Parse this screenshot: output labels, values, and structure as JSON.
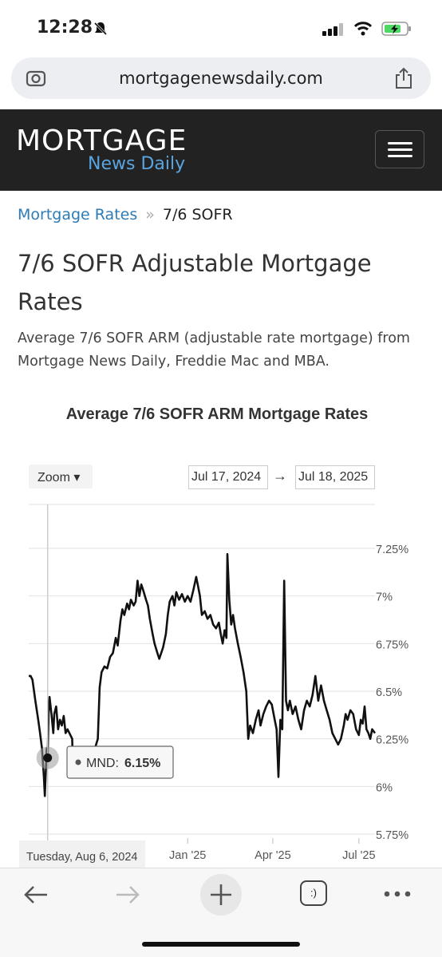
{
  "status_bar": {
    "time": "12:28"
  },
  "browser": {
    "url": "mortgagenewsdaily.com",
    "tab_count": ":)"
  },
  "site": {
    "logo_top": "MORTGAGE",
    "logo_bottom": "News Daily"
  },
  "breadcrumb": {
    "link": "Mortgage Rates",
    "separator": "»",
    "current": "7/6 SOFR"
  },
  "page": {
    "title": "7/6 SOFR Adjustable Mortgage Rates",
    "description": "Average 7/6 SOFR ARM (adjustable rate mortgage) from Mortgage News Daily, Freddie Mac and MBA."
  },
  "chart_controls": {
    "zoom_label": "Zoom ▾",
    "start_date": "Jul 17, 2024",
    "arrow": "→",
    "end_date": "Jul 18, 2025"
  },
  "tooltip": {
    "series": "MND:",
    "value": "6.15%",
    "date_label": "Tuesday, Aug 6, 2024"
  },
  "colors": {
    "header_bg": "#222222",
    "link": "#2d7bb7",
    "logo_accent": "#5aa5e0",
    "line": "#111111"
  },
  "chart_data": {
    "type": "line",
    "title": "Average 7/6 SOFR ARM Mortgage Rates",
    "xlabel": "",
    "ylabel": "",
    "y_ticks": [
      "5.75%",
      "6%",
      "6.25%",
      "6.5%",
      "6.75%",
      "7%",
      "7.25%"
    ],
    "x_ticks": [
      "Jan '25",
      "Apr '25",
      "Jul '25"
    ],
    "ylim": [
      5.75,
      7.25
    ],
    "xlim": [
      "2024-07-17",
      "2025-07-18"
    ],
    "grid": true,
    "series": [
      {
        "name": "MND",
        "points": [
          [
            "2024-07-17",
            6.58
          ],
          [
            "2024-07-19",
            6.58
          ],
          [
            "2024-07-21",
            6.56
          ],
          [
            "2024-07-24",
            6.45
          ],
          [
            "2024-07-27",
            6.35
          ],
          [
            "2024-07-29",
            6.28
          ],
          [
            "2024-07-31",
            6.2
          ],
          [
            "2024-08-02",
            6.05
          ],
          [
            "2024-08-03",
            5.95
          ],
          [
            "2024-08-05",
            6.2
          ],
          [
            "2024-08-06",
            6.15
          ],
          [
            "2024-08-07",
            6.38
          ],
          [
            "2024-08-08",
            6.47
          ],
          [
            "2024-08-10",
            6.38
          ],
          [
            "2024-08-12",
            6.28
          ],
          [
            "2024-08-13",
            6.38
          ],
          [
            "2024-08-15",
            6.42
          ],
          [
            "2024-08-17",
            6.3
          ],
          [
            "2024-08-19",
            6.35
          ],
          [
            "2024-08-21",
            6.32
          ],
          [
            "2024-08-23",
            6.37
          ],
          [
            "2024-08-25",
            6.28
          ],
          [
            "2024-08-27",
            6.3
          ],
          [
            "2024-08-30",
            6.27
          ],
          [
            "2024-09-01",
            6.25
          ],
          [
            "2024-09-02",
            6.05
          ],
          [
            "2024-09-04",
            6.18
          ],
          [
            "2024-09-06",
            6.1
          ],
          [
            "2024-09-09",
            6.07
          ],
          [
            "2024-09-11",
            6.12
          ],
          [
            "2024-09-14",
            6.15
          ],
          [
            "2024-09-16",
            6.12
          ],
          [
            "2024-09-19",
            6.14
          ],
          [
            "2024-09-22",
            6.18
          ],
          [
            "2024-09-25",
            6.2
          ],
          [
            "2024-09-28",
            6.25
          ],
          [
            "2024-09-30",
            6.52
          ],
          [
            "2024-10-02",
            6.6
          ],
          [
            "2024-10-05",
            6.63
          ],
          [
            "2024-10-08",
            6.62
          ],
          [
            "2024-10-11",
            6.68
          ],
          [
            "2024-10-14",
            6.7
          ],
          [
            "2024-10-17",
            6.78
          ],
          [
            "2024-10-19",
            6.74
          ],
          [
            "2024-10-22",
            6.87
          ],
          [
            "2024-10-24",
            6.93
          ],
          [
            "2024-10-26",
            6.9
          ],
          [
            "2024-10-29",
            6.96
          ],
          [
            "2024-10-31",
            6.93
          ],
          [
            "2024-11-02",
            6.98
          ],
          [
            "2024-11-05",
            6.95
          ],
          [
            "2024-11-07",
            6.97
          ],
          [
            "2024-11-09",
            7.08
          ],
          [
            "2024-11-11",
            7.0
          ],
          [
            "2024-11-13",
            7.06
          ],
          [
            "2024-11-15",
            7.03
          ],
          [
            "2024-11-18",
            6.98
          ],
          [
            "2024-11-20",
            6.95
          ],
          [
            "2024-11-22",
            6.88
          ],
          [
            "2024-11-25",
            6.8
          ],
          [
            "2024-11-27",
            6.75
          ],
          [
            "2024-11-30",
            6.7
          ],
          [
            "2024-12-02",
            6.67
          ],
          [
            "2024-12-04",
            6.7
          ],
          [
            "2024-12-06",
            6.73
          ],
          [
            "2024-12-09",
            6.8
          ],
          [
            "2024-12-11",
            6.9
          ],
          [
            "2024-12-13",
            6.97
          ],
          [
            "2024-12-16",
            7.0
          ],
          [
            "2024-12-18",
            6.95
          ],
          [
            "2024-12-20",
            7.02
          ],
          [
            "2024-12-23",
            6.98
          ],
          [
            "2024-12-26",
            7.01
          ],
          [
            "2024-12-29",
            6.97
          ],
          [
            "2025-01-01",
            7.0
          ],
          [
            "2025-01-04",
            6.97
          ],
          [
            "2025-01-07",
            7.03
          ],
          [
            "2025-01-10",
            7.1
          ],
          [
            "2025-01-12",
            7.05
          ],
          [
            "2025-01-14",
            7.0
          ],
          [
            "2025-01-16",
            6.9
          ],
          [
            "2025-01-19",
            6.92
          ],
          [
            "2025-01-22",
            6.88
          ],
          [
            "2025-01-25",
            6.9
          ],
          [
            "2025-01-28",
            6.85
          ],
          [
            "2025-01-31",
            6.83
          ],
          [
            "2025-02-03",
            6.86
          ],
          [
            "2025-02-05",
            6.8
          ],
          [
            "2025-02-07",
            6.75
          ],
          [
            "2025-02-09",
            6.82
          ],
          [
            "2025-02-11",
            6.78
          ],
          [
            "2025-02-12",
            7.22
          ],
          [
            "2025-02-14",
            6.98
          ],
          [
            "2025-02-16",
            6.85
          ],
          [
            "2025-02-18",
            6.9
          ],
          [
            "2025-02-20",
            6.83
          ],
          [
            "2025-02-23",
            6.75
          ],
          [
            "2025-02-26",
            6.68
          ],
          [
            "2025-03-01",
            6.6
          ],
          [
            "2025-03-04",
            6.5
          ],
          [
            "2025-03-06",
            6.25
          ],
          [
            "2025-03-08",
            6.32
          ],
          [
            "2025-03-11",
            6.28
          ],
          [
            "2025-03-14",
            6.35
          ],
          [
            "2025-03-17",
            6.4
          ],
          [
            "2025-03-19",
            6.32
          ],
          [
            "2025-03-22",
            6.38
          ],
          [
            "2025-03-25",
            6.42
          ],
          [
            "2025-03-28",
            6.45
          ],
          [
            "2025-03-31",
            6.43
          ],
          [
            "2025-04-03",
            6.35
          ],
          [
            "2025-04-05",
            6.3
          ],
          [
            "2025-04-07",
            6.05
          ],
          [
            "2025-04-09",
            6.35
          ],
          [
            "2025-04-11",
            6.3
          ],
          [
            "2025-04-13",
            7.08
          ],
          [
            "2025-04-15",
            6.45
          ],
          [
            "2025-04-17",
            6.4
          ],
          [
            "2025-04-19",
            6.45
          ],
          [
            "2025-04-22",
            6.38
          ],
          [
            "2025-04-25",
            6.42
          ],
          [
            "2025-04-28",
            6.35
          ],
          [
            "2025-05-01",
            6.3
          ],
          [
            "2025-05-04",
            6.4
          ],
          [
            "2025-05-07",
            6.45
          ],
          [
            "2025-05-10",
            6.42
          ],
          [
            "2025-05-13",
            6.48
          ],
          [
            "2025-05-16",
            6.58
          ],
          [
            "2025-05-19",
            6.45
          ],
          [
            "2025-05-22",
            6.53
          ],
          [
            "2025-05-25",
            6.45
          ],
          [
            "2025-05-28",
            6.4
          ],
          [
            "2025-05-31",
            6.35
          ],
          [
            "2025-06-03",
            6.28
          ],
          [
            "2025-06-06",
            6.25
          ],
          [
            "2025-06-09",
            6.22
          ],
          [
            "2025-06-12",
            6.25
          ],
          [
            "2025-06-15",
            6.32
          ],
          [
            "2025-06-17",
            6.38
          ],
          [
            "2025-06-19",
            6.35
          ],
          [
            "2025-06-22",
            6.4
          ],
          [
            "2025-06-25",
            6.38
          ],
          [
            "2025-06-28",
            6.3
          ],
          [
            "2025-07-01",
            6.27
          ],
          [
            "2025-07-03",
            6.35
          ],
          [
            "2025-07-05",
            6.33
          ],
          [
            "2025-07-07",
            6.42
          ],
          [
            "2025-07-09",
            6.3
          ],
          [
            "2025-07-11",
            6.28
          ],
          [
            "2025-07-13",
            6.25
          ],
          [
            "2025-07-15",
            6.3
          ],
          [
            "2025-07-18",
            6.28
          ]
        ]
      }
    ]
  }
}
